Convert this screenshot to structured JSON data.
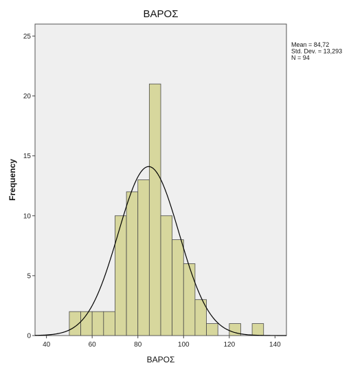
{
  "chart_data": {
    "type": "bar",
    "title": "ΒΑΡΟΣ",
    "xlabel": "ΒΑΡΟΣ",
    "ylabel": "Frequency",
    "xlim": [
      35,
      145
    ],
    "ylim": [
      0,
      26
    ],
    "x_ticks": [
      40,
      60,
      80,
      100,
      120,
      140
    ],
    "y_ticks": [
      0,
      5,
      10,
      15,
      20,
      25
    ],
    "grid": false,
    "bin_width": 5,
    "bins": [
      {
        "start": 50,
        "end": 55,
        "count": 2
      },
      {
        "start": 55,
        "end": 60,
        "count": 2
      },
      {
        "start": 60,
        "end": 65,
        "count": 2
      },
      {
        "start": 65,
        "end": 70,
        "count": 2
      },
      {
        "start": 70,
        "end": 75,
        "count": 10
      },
      {
        "start": 75,
        "end": 80,
        "count": 12
      },
      {
        "start": 80,
        "end": 85,
        "count": 13
      },
      {
        "start": 85,
        "end": 90,
        "count": 21
      },
      {
        "start": 90,
        "end": 95,
        "count": 10
      },
      {
        "start": 95,
        "end": 100,
        "count": 8
      },
      {
        "start": 100,
        "end": 105,
        "count": 6
      },
      {
        "start": 105,
        "end": 110,
        "count": 3
      },
      {
        "start": 110,
        "end": 115,
        "count": 1
      },
      {
        "start": 120,
        "end": 125,
        "count": 1
      },
      {
        "start": 130,
        "end": 135,
        "count": 1
      }
    ],
    "normal_curve": {
      "mean": 84.72,
      "std_dev": 13.293,
      "n": 94
    },
    "stats_lines": [
      "Mean = 84,72",
      "Std. Dev. = 13,293",
      "N = 94"
    ],
    "legend_position": "top-right",
    "colors": {
      "plot_background": "#efefef",
      "bar_fill": "#d7d79d",
      "bar_stroke": "#4a4a4a",
      "curve": "#000000"
    }
  }
}
